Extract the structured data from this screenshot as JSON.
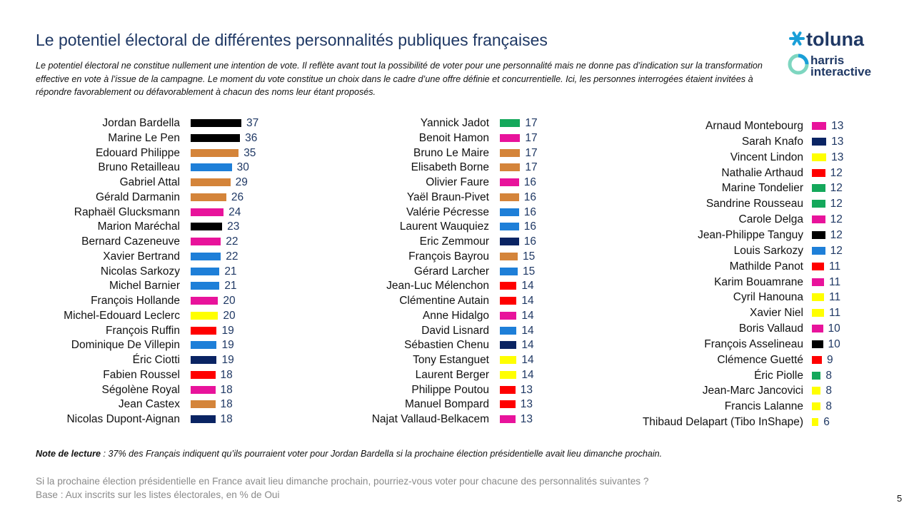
{
  "title": "Le potentiel électoral de différentes personnalités publiques françaises",
  "subtitle": "Le potentiel électoral ne constitue nullement une intention de vote. Il reflète avant tout la possibilité de voter pour une personnalité mais ne donne pas d’indication sur la transformation effective en vote à l’issue de la campagne. Le moment du vote constitue un choix dans le cadre d’une offre définie et concurrentielle. Ici, les personnes interrogées étaient invitées à répondre favorablement ou défavorablement à chacun des noms leur étant proposés.",
  "logo": {
    "brand1": "toluna",
    "brand2a": "harris",
    "brand2b": "interactive",
    "accent": "#1a9fd8",
    "brand2_color": "#1f3864"
  },
  "colors": {
    "black": "#000000",
    "orange": "#d4843a",
    "blue": "#1e7fd8",
    "pink": "#e8139b",
    "yellow": "#ffff00",
    "red": "#ff0000",
    "navy": "#0a2463",
    "green": "#14a85b"
  },
  "note": {
    "label": "Note de lecture",
    "text": " : 37% des Français indiquent qu’ils pourraient voter pour Jordan Bardella si la prochaine élection présidentielle avait lieu dimanche prochain."
  },
  "question": "Si la prochaine élection présidentielle en France avait lieu dimanche prochain, pourriez-vous voter pour chacune des personnalités suivantes ?",
  "base": "Base : Aux inscrits sur les listes électorales, en % de Oui",
  "page_number": "5",
  "chart_data": {
    "type": "bar",
    "orientation": "horizontal",
    "unit": "% de Oui",
    "columns": [
      {
        "items": [
          {
            "name": "Jordan Bardella",
            "value": 37,
            "color": "black"
          },
          {
            "name": "Marine Le Pen",
            "value": 36,
            "color": "black"
          },
          {
            "name": "Edouard Philippe",
            "value": 35,
            "color": "orange"
          },
          {
            "name": "Bruno Retailleau",
            "value": 30,
            "color": "blue"
          },
          {
            "name": "Gabriel Attal",
            "value": 29,
            "color": "orange"
          },
          {
            "name": "Gérald Darmanin",
            "value": 26,
            "color": "orange"
          },
          {
            "name": "Raphaël Glucksmann",
            "value": 24,
            "color": "pink"
          },
          {
            "name": "Marion Maréchal",
            "value": 23,
            "color": "black"
          },
          {
            "name": "Bernard Cazeneuve",
            "value": 22,
            "color": "pink"
          },
          {
            "name": "Xavier Bertrand",
            "value": 22,
            "color": "blue"
          },
          {
            "name": "Nicolas Sarkozy",
            "value": 21,
            "color": "blue"
          },
          {
            "name": "Michel Barnier",
            "value": 21,
            "color": "blue"
          },
          {
            "name": "François Hollande",
            "value": 20,
            "color": "pink"
          },
          {
            "name": "Michel-Edouard Leclerc",
            "value": 20,
            "color": "yellow"
          },
          {
            "name": "François Ruffin",
            "value": 19,
            "color": "red"
          },
          {
            "name": "Dominique De Villepin",
            "value": 19,
            "color": "blue"
          },
          {
            "name": "Éric Ciotti",
            "value": 19,
            "color": "navy"
          },
          {
            "name": "Fabien Roussel",
            "value": 18,
            "color": "red"
          },
          {
            "name": "Ségolène Royal",
            "value": 18,
            "color": "pink"
          },
          {
            "name": "Jean Castex",
            "value": 18,
            "color": "orange"
          },
          {
            "name": "Nicolas Dupont-Aignan",
            "value": 18,
            "color": "navy"
          }
        ]
      },
      {
        "items": [
          {
            "name": "Yannick Jadot",
            "value": 17,
            "color": "green"
          },
          {
            "name": "Benoit Hamon",
            "value": 17,
            "color": "pink"
          },
          {
            "name": "Bruno Le Maire",
            "value": 17,
            "color": "orange"
          },
          {
            "name": "Elisabeth Borne",
            "value": 17,
            "color": "orange"
          },
          {
            "name": "Olivier Faure",
            "value": 16,
            "color": "pink"
          },
          {
            "name": "Yaël Braun-Pivet",
            "value": 16,
            "color": "orange"
          },
          {
            "name": "Valérie Pécresse",
            "value": 16,
            "color": "blue"
          },
          {
            "name": "Laurent Wauquiez",
            "value": 16,
            "color": "blue"
          },
          {
            "name": "Eric Zemmour",
            "value": 16,
            "color": "navy"
          },
          {
            "name": "François Bayrou",
            "value": 15,
            "color": "orange"
          },
          {
            "name": "Gérard Larcher",
            "value": 15,
            "color": "blue"
          },
          {
            "name": "Jean-Luc Mélenchon",
            "value": 14,
            "color": "red"
          },
          {
            "name": "Clémentine Autain",
            "value": 14,
            "color": "red"
          },
          {
            "name": "Anne Hidalgo",
            "value": 14,
            "color": "pink"
          },
          {
            "name": "David Lisnard",
            "value": 14,
            "color": "blue"
          },
          {
            "name": "Sébastien Chenu",
            "value": 14,
            "color": "navy"
          },
          {
            "name": "Tony Estanguet",
            "value": 14,
            "color": "yellow"
          },
          {
            "name": "Laurent Berger",
            "value": 14,
            "color": "yellow"
          },
          {
            "name": "Philippe Poutou",
            "value": 13,
            "color": "red"
          },
          {
            "name": "Manuel Bompard",
            "value": 13,
            "color": "red"
          },
          {
            "name": "Najat Vallaud-Belkacem",
            "value": 13,
            "color": "pink"
          }
        ]
      },
      {
        "items": [
          {
            "name": "Arnaud Montebourg",
            "value": 13,
            "color": "pink"
          },
          {
            "name": "Sarah Knafo",
            "value": 13,
            "color": "navy"
          },
          {
            "name": "Vincent Lindon",
            "value": 13,
            "color": "yellow"
          },
          {
            "name": "Nathalie Arthaud",
            "value": 12,
            "color": "red"
          },
          {
            "name": "Marine Tondelier",
            "value": 12,
            "color": "green"
          },
          {
            "name": "Sandrine Rousseau",
            "value": 12,
            "color": "green"
          },
          {
            "name": "Carole Delga",
            "value": 12,
            "color": "pink"
          },
          {
            "name": "Jean-Philippe Tanguy",
            "value": 12,
            "color": "black"
          },
          {
            "name": "Louis Sarkozy",
            "value": 12,
            "color": "blue"
          },
          {
            "name": "Mathilde Panot",
            "value": 11,
            "color": "red"
          },
          {
            "name": "Karim Bouamrane",
            "value": 11,
            "color": "pink"
          },
          {
            "name": "Cyril Hanouna",
            "value": 11,
            "color": "yellow"
          },
          {
            "name": "Xavier Niel",
            "value": 11,
            "color": "yellow"
          },
          {
            "name": "Boris Vallaud",
            "value": 10,
            "color": "pink"
          },
          {
            "name": "François Asselineau",
            "value": 10,
            "color": "black"
          },
          {
            "name": "Clémence Guetté",
            "value": 9,
            "color": "red"
          },
          {
            "name": "Éric Piolle",
            "value": 8,
            "color": "green"
          },
          {
            "name": "Jean-Marc Jancovici",
            "value": 8,
            "color": "yellow"
          },
          {
            "name": "Francis Lalanne",
            "value": 8,
            "color": "yellow"
          },
          {
            "name": "Thibaud Delapart (Tibo InShape)",
            "value": 6,
            "color": "yellow"
          }
        ]
      }
    ]
  }
}
